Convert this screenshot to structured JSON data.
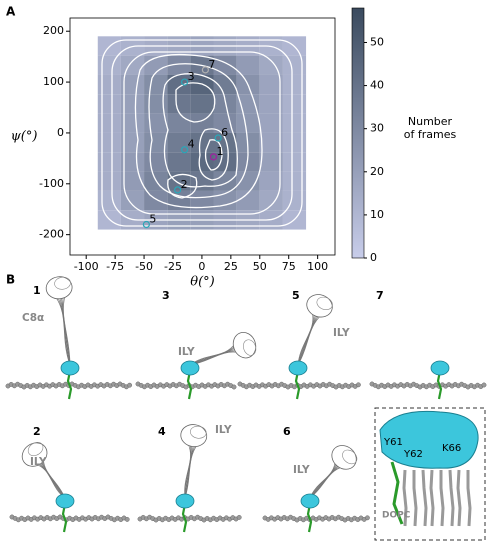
{
  "panel_a": {
    "label": "A"
  },
  "chart_data": {
    "type": "heatmap",
    "x_label": "θ(°)",
    "y_label": "ψ(°)",
    "xlim": [
      -114,
      115
    ],
    "ylim": [
      -240,
      226
    ],
    "xticks": [
      -100,
      -75,
      -50,
      -25,
      0,
      25,
      50,
      75,
      100
    ],
    "yticks": [
      -200,
      -100,
      0,
      100,
      200
    ],
    "x_bins": [
      -90,
      -70,
      -50,
      -30,
      -10,
      10,
      30,
      50,
      70,
      90
    ],
    "y_bins": [
      190,
      152,
      114,
      76,
      38,
      0,
      -38,
      -76,
      -114,
      -152,
      -190
    ],
    "values": [
      [
        10,
        12,
        14,
        16,
        18,
        16,
        14,
        12,
        10
      ],
      [
        12,
        16,
        22,
        30,
        38,
        30,
        22,
        16,
        12
      ],
      [
        14,
        20,
        28,
        42,
        46,
        36,
        26,
        18,
        12
      ],
      [
        14,
        20,
        28,
        38,
        40,
        32,
        24,
        18,
        12
      ],
      [
        14,
        20,
        26,
        32,
        34,
        30,
        24,
        18,
        12
      ],
      [
        14,
        20,
        28,
        36,
        40,
        40,
        28,
        18,
        12
      ],
      [
        14,
        22,
        30,
        38,
        44,
        42,
        30,
        20,
        12
      ],
      [
        14,
        22,
        32,
        40,
        38,
        32,
        26,
        18,
        12
      ],
      [
        12,
        20,
        30,
        34,
        30,
        26,
        22,
        16,
        12
      ],
      [
        10,
        14,
        18,
        20,
        20,
        18,
        16,
        14,
        10
      ]
    ],
    "colormap": [
      "#c8cdea",
      "#3a4a5e"
    ],
    "clim": [
      0,
      58
    ],
    "cticks": [
      0,
      10,
      20,
      30,
      40,
      50
    ],
    "colorbar_label": [
      "Number",
      "of frames"
    ],
    "points": [
      {
        "label": "1",
        "x": 10,
        "y": -47,
        "color": "#a020a0"
      },
      {
        "label": "2",
        "x": -21,
        "y": -112,
        "color": "#2aa7b8"
      },
      {
        "label": "3",
        "x": -15,
        "y": 100,
        "color": "#2aa7b8"
      },
      {
        "label": "4",
        "x": -15,
        "y": -33,
        "color": "#2aa7b8"
      },
      {
        "label": "5",
        "x": -48,
        "y": -180,
        "color": "#2aa7b8"
      },
      {
        "label": "6",
        "x": 14,
        "y": -10,
        "color": "#2aa7b8"
      },
      {
        "label": "7",
        "x": 3,
        "y": 124,
        "color": "#b0b0b0"
      }
    ]
  },
  "panel_b": {
    "label": "B",
    "snapshots": [
      {
        "label": "1",
        "color": "#8b1a8b",
        "protein": "C8α"
      },
      {
        "label": "3",
        "color": "#1f8fa6",
        "protein": "ILY"
      },
      {
        "label": "5",
        "color": "#1f8fa6",
        "protein": "ILY"
      },
      {
        "label": "7",
        "color": "#888888"
      },
      {
        "label": "2",
        "color": "#1f8fa6",
        "protein": "ILY"
      },
      {
        "label": "4",
        "color": "#1f8fa6",
        "protein": "ILY"
      },
      {
        "label": "6",
        "color": "#1f8fa6",
        "protein": "ILY"
      }
    ],
    "inset": {
      "residues": [
        "Y61",
        "Y62",
        "K66"
      ],
      "lipid": "DOPC"
    }
  }
}
